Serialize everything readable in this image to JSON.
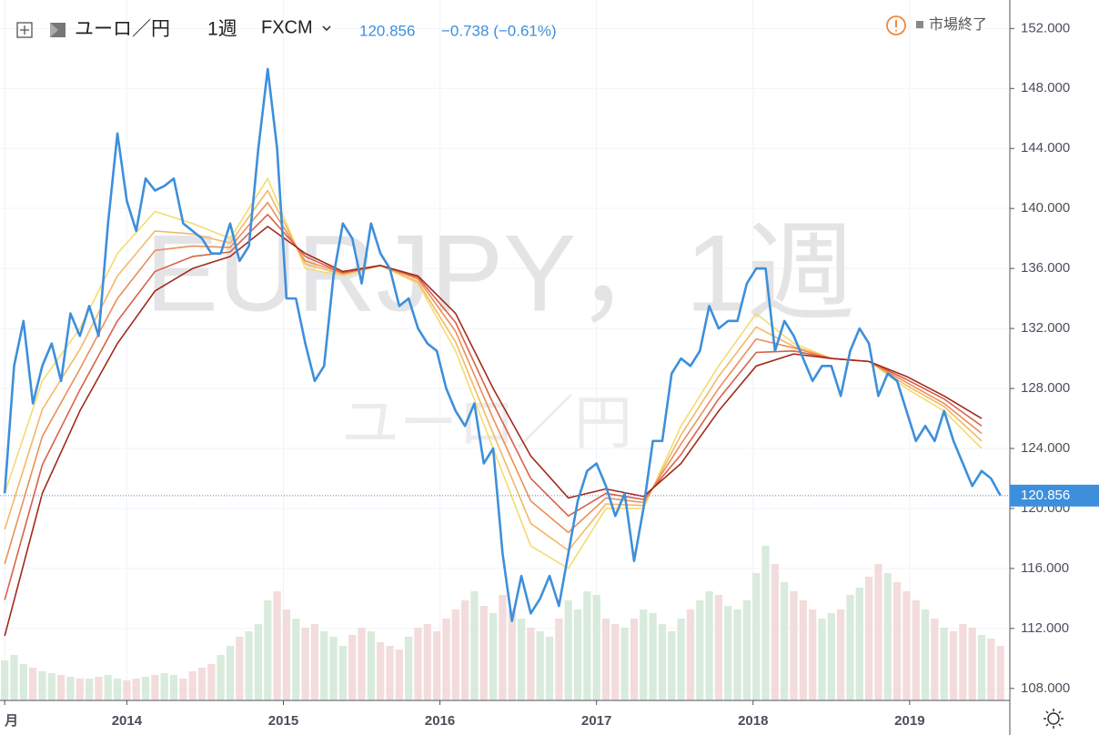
{
  "chart_data": {
    "type": "line",
    "header": {
      "symbol": "ユーロ／円",
      "interval": "1週",
      "exchange": "FXCM",
      "change": "−0.738 (−0.61%)",
      "status": "市場終了"
    },
    "watermark": {
      "main": "EURJPY，1週",
      "sub": "ユーロ／円"
    },
    "xlim": [
      2013.19,
      2019.64
    ],
    "ylim": [
      107.2,
      153.9
    ],
    "xticks": [
      {
        "value": 2013.22,
        "label": "月"
      },
      2014,
      2015,
      2016,
      2017,
      2018,
      2019
    ],
    "yticks": [
      {
        "value": 108,
        "label": "108.000"
      },
      {
        "value": 112,
        "label": "112.000"
      },
      {
        "value": 116,
        "label": "116.000"
      },
      {
        "value": 120,
        "label": "120.000"
      },
      {
        "value": 124,
        "label": "124.000"
      },
      {
        "value": 128,
        "label": "128.000"
      },
      {
        "value": 132,
        "label": "132.000"
      },
      {
        "value": 136,
        "label": "136.000"
      },
      {
        "value": 140,
        "label": "140.000"
      },
      {
        "value": 144,
        "label": "144.000"
      },
      {
        "value": 148,
        "label": "148.000"
      },
      {
        "value": 152,
        "label": "152.000"
      }
    ],
    "grid": true,
    "x": [
      2013.22,
      2013.28,
      2013.34,
      2013.4,
      2013.46,
      2013.52,
      2013.58,
      2013.64,
      2013.7,
      2013.76,
      2013.82,
      2013.88,
      2013.94,
      2014,
      2014.06,
      2014.12,
      2014.18,
      2014.24,
      2014.3,
      2014.36,
      2014.42,
      2014.48,
      2014.54,
      2014.6,
      2014.66,
      2014.72,
      2014.78,
      2014.84,
      2014.9,
      2014.96,
      2015.02,
      2015.08,
      2015.14,
      2015.2,
      2015.26,
      2015.32,
      2015.38,
      2015.44,
      2015.5,
      2015.56,
      2015.62,
      2015.68,
      2015.74,
      2015.8,
      2015.86,
      2015.92,
      2015.98,
      2016.04,
      2016.1,
      2016.16,
      2016.22,
      2016.28,
      2016.34,
      2016.4,
      2016.46,
      2016.52,
      2016.58,
      2016.64,
      2016.7,
      2016.76,
      2016.82,
      2016.88,
      2016.94,
      2017,
      2017.06,
      2017.12,
      2017.18,
      2017.24,
      2017.3,
      2017.36,
      2017.42,
      2017.48,
      2017.54,
      2017.6,
      2017.66,
      2017.72,
      2017.78,
      2017.84,
      2017.9,
      2017.96,
      2018.02,
      2018.08,
      2018.14,
      2018.2,
      2018.26,
      2018.32,
      2018.38,
      2018.44,
      2018.5,
      2018.56,
      2018.62,
      2018.68,
      2018.74,
      2018.8,
      2018.86,
      2018.92,
      2018.98,
      2019.04,
      2019.1,
      2019.16,
      2019.22,
      2019.28,
      2019.34,
      2019.4,
      2019.46,
      2019.52,
      2019.58
    ],
    "series": [
      {
        "name": "EURJPY",
        "color": "#3d8fdc",
        "values": [
          121,
          129.5,
          132.5,
          127,
          129.5,
          131,
          128.5,
          133,
          131.5,
          133.5,
          131.5,
          139,
          145,
          140.5,
          138.5,
          142,
          141.2,
          141.5,
          142,
          139,
          138.5,
          138,
          137,
          137,
          139,
          136.5,
          137.5,
          144,
          149.3,
          144,
          134,
          134,
          131,
          128.5,
          129.5,
          135.5,
          139,
          138,
          135,
          139,
          137,
          136,
          133.5,
          134,
          132,
          131,
          130.5,
          128,
          126.5,
          125.5,
          127,
          123,
          124,
          117,
          112.5,
          115.5,
          113,
          114,
          115.5,
          113.5,
          117,
          120.5,
          122.5,
          123,
          121.5,
          119.5,
          121,
          116.5,
          120,
          124.5,
          124.5,
          129,
          130,
          129.5,
          130.5,
          133.5,
          132,
          132.5,
          132.5,
          135,
          136,
          136,
          130.5,
          132.5,
          131.5,
          130,
          128.5,
          129.5,
          129.5,
          127.5,
          130.5,
          132,
          131,
          127.5,
          129,
          128.5,
          126.5,
          124.5,
          125.5,
          124.5,
          126.5,
          124.5,
          123,
          121.5,
          122.5,
          122,
          120.856
        ]
      }
    ],
    "ribbon": {
      "x": [
        2013.22,
        2013.46,
        2013.7,
        2013.94,
        2014.18,
        2014.42,
        2014.66,
        2014.9,
        2015.14,
        2015.38,
        2015.62,
        2015.86,
        2016.1,
        2016.34,
        2016.58,
        2016.82,
        2017.06,
        2017.3,
        2017.54,
        2017.78,
        2018.02,
        2018.26,
        2018.5,
        2018.74,
        2018.98,
        2019.22,
        2019.46
      ],
      "series": [
        {
          "color": "#f3dc72",
          "values": [
            121,
            128.5,
            132,
            137,
            139.8,
            139,
            138,
            142,
            136,
            135.5,
            136.2,
            135,
            130.5,
            124,
            117.5,
            116,
            120,
            120,
            125.5,
            129.5,
            133,
            131,
            130,
            129.8,
            128,
            126.5,
            124
          ]
        },
        {
          "color": "#f4b866",
          "values": [
            118.6,
            126.6,
            130.6,
            135.5,
            138.5,
            138.3,
            137.7,
            141.2,
            136.3,
            135.6,
            136.2,
            135.1,
            131.1,
            125,
            119,
            117.2,
            120.3,
            120.2,
            124.9,
            128.8,
            132.1,
            130.8,
            130,
            129.8,
            128.2,
            126.8,
            124.5
          ]
        },
        {
          "color": "#ec8f58",
          "values": [
            116.3,
            124.8,
            129.3,
            134,
            137.2,
            137.5,
            137.4,
            140.4,
            136.5,
            135.7,
            136.2,
            135.3,
            131.8,
            126,
            120.5,
            118.4,
            120.7,
            120.4,
            124.3,
            128,
            131.3,
            130.7,
            130,
            129.8,
            128.4,
            127,
            125
          ]
        },
        {
          "color": "#d9614a",
          "values": [
            113.9,
            122.9,
            127.9,
            132.5,
            135.8,
            136.8,
            137.1,
            139.6,
            136.8,
            135.7,
            136.2,
            135.4,
            132.4,
            127,
            122,
            119.5,
            121,
            120.6,
            123.6,
            127.3,
            130.4,
            130.5,
            130,
            129.8,
            128.6,
            127.3,
            125.5
          ]
        },
        {
          "color": "#a3291c",
          "values": [
            111.5,
            121,
            126.5,
            131,
            134.5,
            136,
            136.8,
            138.8,
            137,
            135.8,
            136.2,
            135.5,
            133,
            128,
            123.5,
            120.7,
            121.3,
            120.8,
            123,
            126.5,
            129.5,
            130.3,
            130,
            129.8,
            128.8,
            127.5,
            126
          ]
        }
      ]
    },
    "volume": {
      "vlim": [
        0,
        100
      ],
      "up_color": "#cfe6d3",
      "down_color": "#f0d3d3",
      "values": [
        22,
        25,
        20,
        18,
        16,
        15,
        14,
        13,
        12,
        12,
        13,
        14,
        12,
        11,
        12,
        13,
        14,
        15,
        14,
        12,
        16,
        18,
        20,
        25,
        30,
        35,
        38,
        42,
        55,
        60,
        50,
        45,
        40,
        42,
        38,
        35,
        30,
        36,
        40,
        38,
        32,
        30,
        28,
        35,
        40,
        42,
        38,
        45,
        50,
        55,
        60,
        52,
        48,
        58,
        50,
        45,
        40,
        38,
        35,
        45,
        55,
        50,
        60,
        58,
        45,
        42,
        40,
        45,
        50,
        48,
        42,
        38,
        45,
        50,
        55,
        60,
        58,
        52,
        50,
        55,
        70,
        85,
        75,
        65,
        60,
        55,
        50,
        45,
        48,
        50,
        58,
        62,
        68,
        75,
        70,
        65,
        60,
        55,
        50,
        45,
        40,
        38,
        42,
        40,
        36,
        34,
        30
      ]
    }
  }
}
